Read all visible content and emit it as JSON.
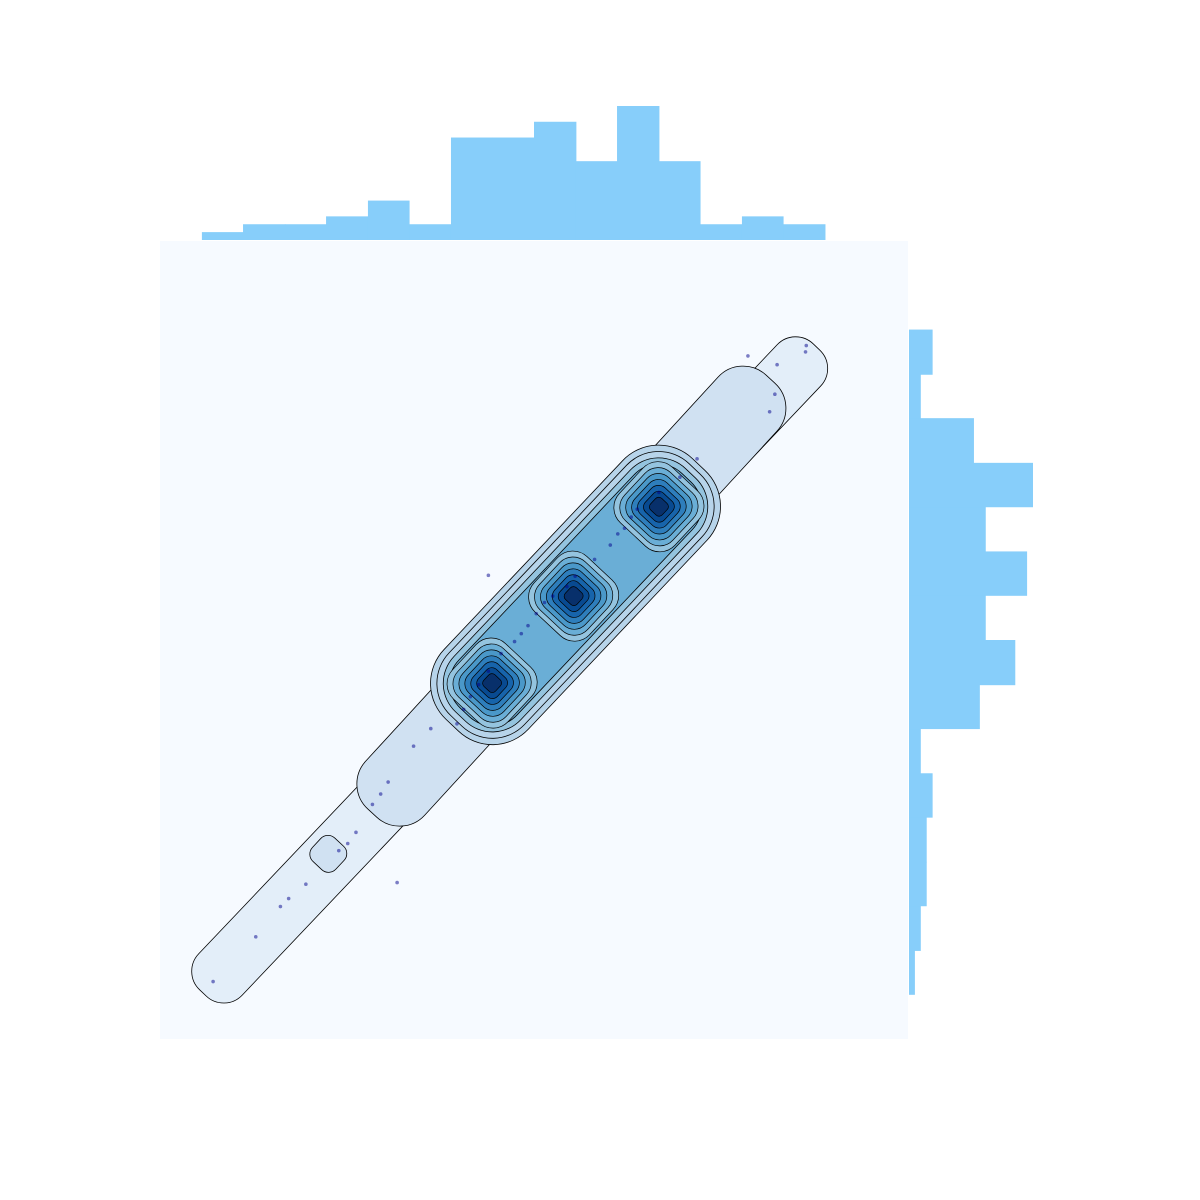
{
  "chart_data": {
    "type": "scatter",
    "title": "",
    "xlabel": "",
    "ylabel": "",
    "grid": false,
    "legend": "none",
    "colors": {
      "panel_background": "#f6faff",
      "histogram": "#87cefa",
      "points": "#00008b",
      "kde_levels": [
        "#e3eef9",
        "#d0e1f2",
        "#b7d4ea",
        "#94c4df",
        "#6aaed6",
        "#4a98c9",
        "#2e7ebc",
        "#1764ab",
        "#084a91",
        "#08306b"
      ],
      "contour_line": "#000000"
    },
    "xlim": [
      0,
      1
    ],
    "ylim": [
      0,
      1
    ],
    "points": [
      [
        0.071,
        0.072
      ],
      [
        0.128,
        0.128
      ],
      [
        0.161,
        0.166
      ],
      [
        0.172,
        0.176
      ],
      [
        0.195,
        0.194
      ],
      [
        0.239,
        0.236
      ],
      [
        0.251,
        0.245
      ],
      [
        0.262,
        0.259
      ],
      [
        0.284,
        0.294
      ],
      [
        0.295,
        0.307
      ],
      [
        0.305,
        0.322
      ],
      [
        0.317,
        0.196
      ],
      [
        0.339,
        0.367
      ],
      [
        0.362,
        0.389
      ],
      [
        0.397,
        0.395
      ],
      [
        0.406,
        0.413
      ],
      [
        0.415,
        0.429
      ],
      [
        0.426,
        0.444
      ],
      [
        0.439,
        0.461
      ],
      [
        0.456,
        0.483
      ],
      [
        0.474,
        0.498
      ],
      [
        0.483,
        0.508
      ],
      [
        0.492,
        0.518
      ],
      [
        0.503,
        0.533
      ],
      [
        0.514,
        0.547
      ],
      [
        0.525,
        0.555
      ],
      [
        0.439,
        0.581
      ],
      [
        0.544,
        0.567
      ],
      [
        0.555,
        0.58
      ],
      [
        0.581,
        0.601
      ],
      [
        0.602,
        0.619
      ],
      [
        0.612,
        0.633
      ],
      [
        0.621,
        0.64
      ],
      [
        0.63,
        0.654
      ],
      [
        0.638,
        0.664
      ],
      [
        0.667,
        0.685
      ],
      [
        0.695,
        0.704
      ],
      [
        0.718,
        0.727
      ],
      [
        0.786,
        0.856
      ],
      [
        0.815,
        0.786
      ],
      [
        0.822,
        0.808
      ],
      [
        0.825,
        0.845
      ],
      [
        0.863,
        0.861
      ],
      [
        0.864,
        0.869
      ]
    ],
    "kde_peaks": [
      [
        0.444,
        0.446
      ],
      [
        0.553,
        0.555
      ],
      [
        0.667,
        0.667
      ]
    ],
    "x_histogram": {
      "bin_edges": [
        0.056,
        0.111,
        0.167,
        0.222,
        0.278,
        0.333,
        0.389,
        0.444,
        0.5,
        0.556,
        0.611,
        0.667,
        0.722,
        0.778,
        0.833,
        0.889
      ],
      "counts": [
        1,
        2,
        2,
        3,
        5,
        2,
        13,
        13,
        15,
        10,
        17,
        10,
        2,
        3,
        2
      ]
    },
    "y_histogram": {
      "bin_edges": [
        0.056,
        0.111,
        0.167,
        0.222,
        0.278,
        0.333,
        0.389,
        0.444,
        0.5,
        0.556,
        0.611,
        0.667,
        0.722,
        0.778,
        0.833,
        0.889
      ],
      "counts": [
        1,
        2,
        3,
        3,
        4,
        2,
        12,
        18,
        13,
        20,
        13,
        21,
        11,
        2,
        4
      ]
    }
  }
}
